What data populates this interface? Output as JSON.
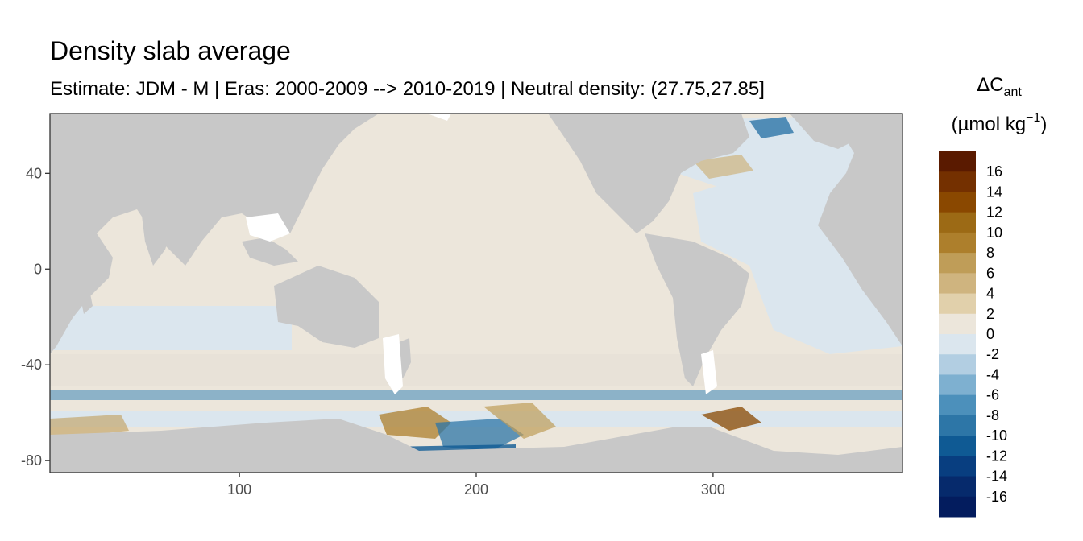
{
  "chart_data": {
    "type": "heatmap",
    "title": "Density slab average",
    "subtitle": "Estimate: JDM - M | Eras: 2000-2009 --> 2010-2019 | Neutral density: (27.75,27.85]",
    "xlim": [
      20,
      380
    ],
    "ylim": [
      -85,
      65
    ],
    "x_ticks": [
      100,
      200,
      300
    ],
    "y_ticks": [
      40,
      0,
      -40,
      -80
    ],
    "x_tick_labels": [
      "100",
      "200",
      "300"
    ],
    "y_tick_labels": [
      "40",
      "0",
      "-40",
      "-80"
    ],
    "grid": true,
    "legend": {
      "position": "right",
      "title_main": "ΔC",
      "title_sub": "ant",
      "title_unit": "(µmol kg",
      "title_sup": "−1",
      "title_close": ")",
      "labels": [
        "16",
        "14",
        "12",
        "10",
        "8",
        "6",
        "4",
        "2",
        "0",
        "-2",
        "-4",
        "-6",
        "-8",
        "-10",
        "-12",
        "-14",
        "-16"
      ],
      "colors": [
        "#5a1a00",
        "#743000",
        "#8a4800",
        "#9c6a15",
        "#ad7f2c",
        "#bf9d58",
        "#cfb47f",
        "#e1d0ab",
        "#ece6db",
        "#dbe6ee",
        "#b2cee2",
        "#7eb0d0",
        "#4c90bb",
        "#2d76a7",
        "#0f5a94",
        "#083e80",
        "#062a6c",
        "#031c5e"
      ]
    },
    "colors": {
      "land": "#c8c8c8",
      "ocean_near_zero": "#ece6db",
      "panel_border": "#333333"
    }
  }
}
